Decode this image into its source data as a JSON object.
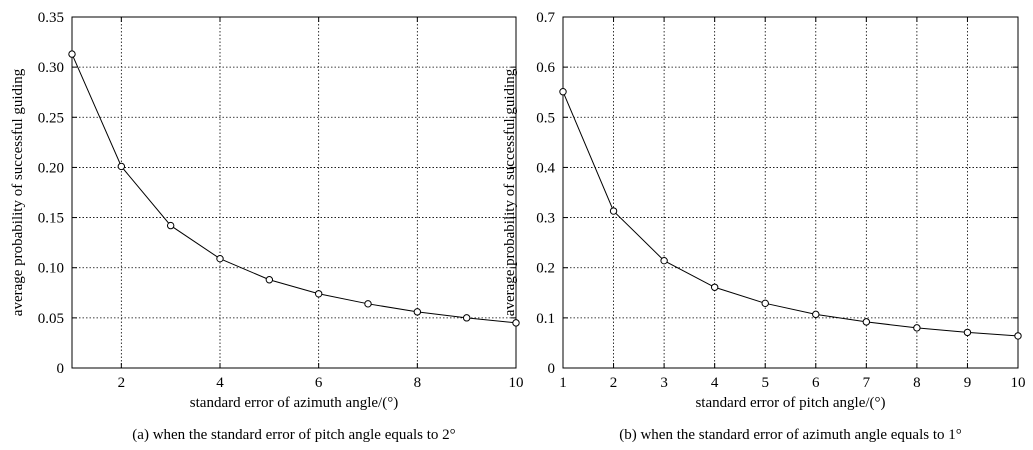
{
  "chart_data": [
    {
      "type": "line",
      "caption": "(a) when the standard error of pitch angle equals to 2°",
      "xlabel": "standard error of azimuth angle/(°)",
      "ylabel": "average probability of successful guiding",
      "xlim": [
        1,
        10
      ],
      "ylim": [
        0,
        0.35
      ],
      "xticks": [
        2,
        4,
        6,
        8,
        10
      ],
      "yticks": [
        0,
        0.05,
        0.1,
        0.15,
        0.2,
        0.25,
        0.3,
        0.35
      ],
      "ytick_labels": [
        "0",
        "0.05",
        "0.10",
        "0.15",
        "0.20",
        "0.25",
        "0.30",
        "0.35"
      ],
      "grid": true,
      "line_color": "#000000",
      "marker": "circle",
      "series": [
        {
          "x": [
            1,
            2,
            3,
            4,
            5,
            6,
            7,
            8,
            9,
            10
          ],
          "y": [
            0.313,
            0.201,
            0.142,
            0.109,
            0.088,
            0.074,
            0.064,
            0.056,
            0.05,
            0.045
          ]
        }
      ]
    },
    {
      "type": "line",
      "caption": "(b) when the standard error of azimuth angle equals to 1°",
      "xlabel": "standard error of pitch angle/(°)",
      "ylabel": "average probability of successful guiding",
      "xlim": [
        1,
        10
      ],
      "ylim": [
        0,
        0.7
      ],
      "xticks": [
        1,
        2,
        3,
        4,
        5,
        6,
        7,
        8,
        9,
        10
      ],
      "yticks": [
        0,
        0.1,
        0.2,
        0.3,
        0.4,
        0.5,
        0.6,
        0.7
      ],
      "ytick_labels": [
        "0",
        "0.1",
        "0.2",
        "0.3",
        "0.4",
        "0.5",
        "0.6",
        "0.7"
      ],
      "grid": true,
      "line_color": "#000000",
      "marker": "circle",
      "series": [
        {
          "x": [
            1,
            2,
            3,
            4,
            5,
            6,
            7,
            8,
            9,
            10
          ],
          "y": [
            0.551,
            0.313,
            0.214,
            0.161,
            0.129,
            0.107,
            0.092,
            0.08,
            0.071,
            0.064
          ]
        }
      ]
    }
  ]
}
